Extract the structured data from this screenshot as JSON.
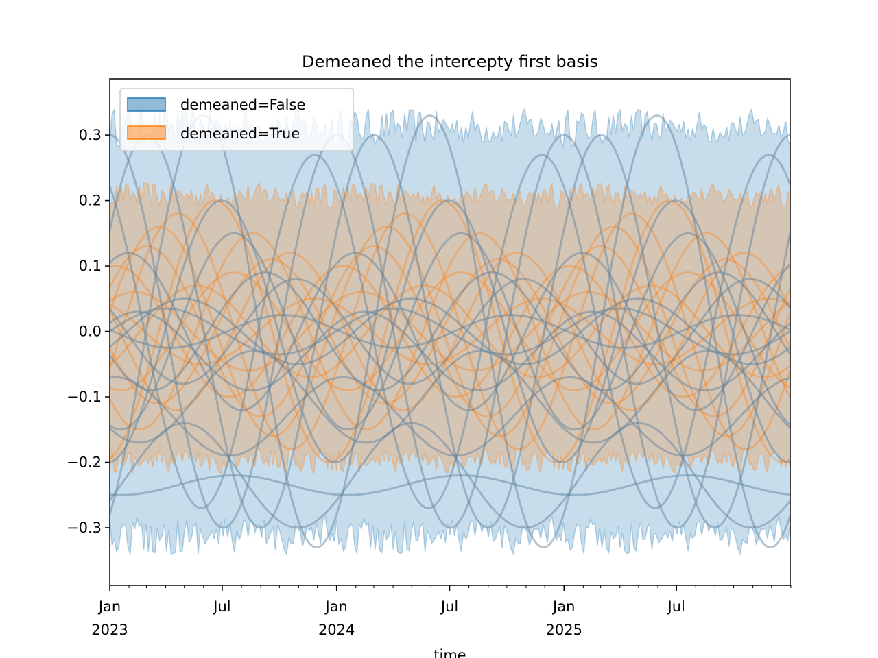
{
  "chart_data": {
    "type": "area",
    "title": "Demeaned the intercepty first basis",
    "xlabel": "time",
    "ylabel": "",
    "x_range": [
      "2023-01-01",
      "2025-12-31"
    ],
    "ylim": [
      -0.388,
      0.386
    ],
    "y_ticks": [
      -0.3,
      -0.2,
      -0.1,
      0.0,
      0.1,
      0.2,
      0.3
    ],
    "y_tick_labels": [
      "−0.3",
      "−0.2",
      "−0.1",
      "0.0",
      "0.1",
      "0.2",
      "0.3"
    ],
    "x_major_ticks": [
      {
        "date": "2023-01-01",
        "label": "Jan",
        "year": "2023"
      },
      {
        "date": "2023-07-01",
        "label": "Jul",
        "year": ""
      },
      {
        "date": "2024-01-01",
        "label": "Jan",
        "year": "2024"
      },
      {
        "date": "2024-07-01",
        "label": "Jul",
        "year": ""
      },
      {
        "date": "2025-01-01",
        "label": "Jan",
        "year": "2025"
      },
      {
        "date": "2025-07-01",
        "label": "Jul",
        "year": ""
      }
    ],
    "legend_position": "top-left",
    "grid": false,
    "period_days": 365.25,
    "colors": {
      "false": "#1f77b4",
      "true": "#ff7f0e",
      "line": "#5b7f98"
    },
    "series": [
      {
        "name": "demeaned=False",
        "color": "#1f77b4",
        "band_upper_approx": 0.3,
        "band_lower_approx": -0.3,
        "sample_lines": [
          {
            "amp": 0.3,
            "peak_day": 0
          },
          {
            "amp": 0.27,
            "peak_day": 330
          },
          {
            "amp": 0.33,
            "peak_day": 150
          },
          {
            "amp": 0.3,
            "peak_day": 60
          },
          {
            "amp": 0.2,
            "peak_day": 180
          },
          {
            "amp": 0.15,
            "peak_day": 200
          },
          {
            "amp": 0.12,
            "peak_day": 30
          },
          {
            "amp": 0.09,
            "peak_day": 250
          },
          {
            "amp": 0.08,
            "peak_day": 300
          },
          {
            "amp": 0.05,
            "peak_day": 120
          },
          {
            "amp": 0.035,
            "peak_day": 90
          },
          {
            "amp": 0.025,
            "peak_day": 280
          }
        ],
        "offset_lines": [
          {
            "offset": -0.235,
            "amp": 0.015,
            "peak_day": 200
          },
          {
            "offset": -0.13,
            "amp": 0.06,
            "peak_day": 10
          },
          {
            "offset": -0.22,
            "amp": 0.08,
            "peak_day": 120
          },
          {
            "offset": -0.03,
            "amp": 0.06,
            "peak_day": 45
          },
          {
            "offset": -0.1,
            "amp": 0.07,
            "peak_day": 230
          }
        ]
      },
      {
        "name": "demeaned=True",
        "color": "#ff7f0e",
        "band_upper_approx": 0.2,
        "band_lower_approx": -0.19,
        "sample_lines": [
          {
            "amp": 0.2,
            "peak_day": 170
          },
          {
            "amp": 0.18,
            "peak_day": 110
          },
          {
            "amp": 0.15,
            "peak_day": 230
          },
          {
            "amp": 0.13,
            "peak_day": 60
          },
          {
            "amp": 0.12,
            "peak_day": 290
          },
          {
            "amp": 0.1,
            "peak_day": 10
          },
          {
            "amp": 0.09,
            "peak_day": 200
          },
          {
            "amp": 0.07,
            "peak_day": 140
          },
          {
            "amp": 0.05,
            "peak_day": 330
          },
          {
            "amp": 0.16,
            "peak_day": 80
          },
          {
            "amp": 0.11,
            "peak_day": 260
          },
          {
            "amp": 0.06,
            "peak_day": 40
          }
        ]
      }
    ]
  }
}
